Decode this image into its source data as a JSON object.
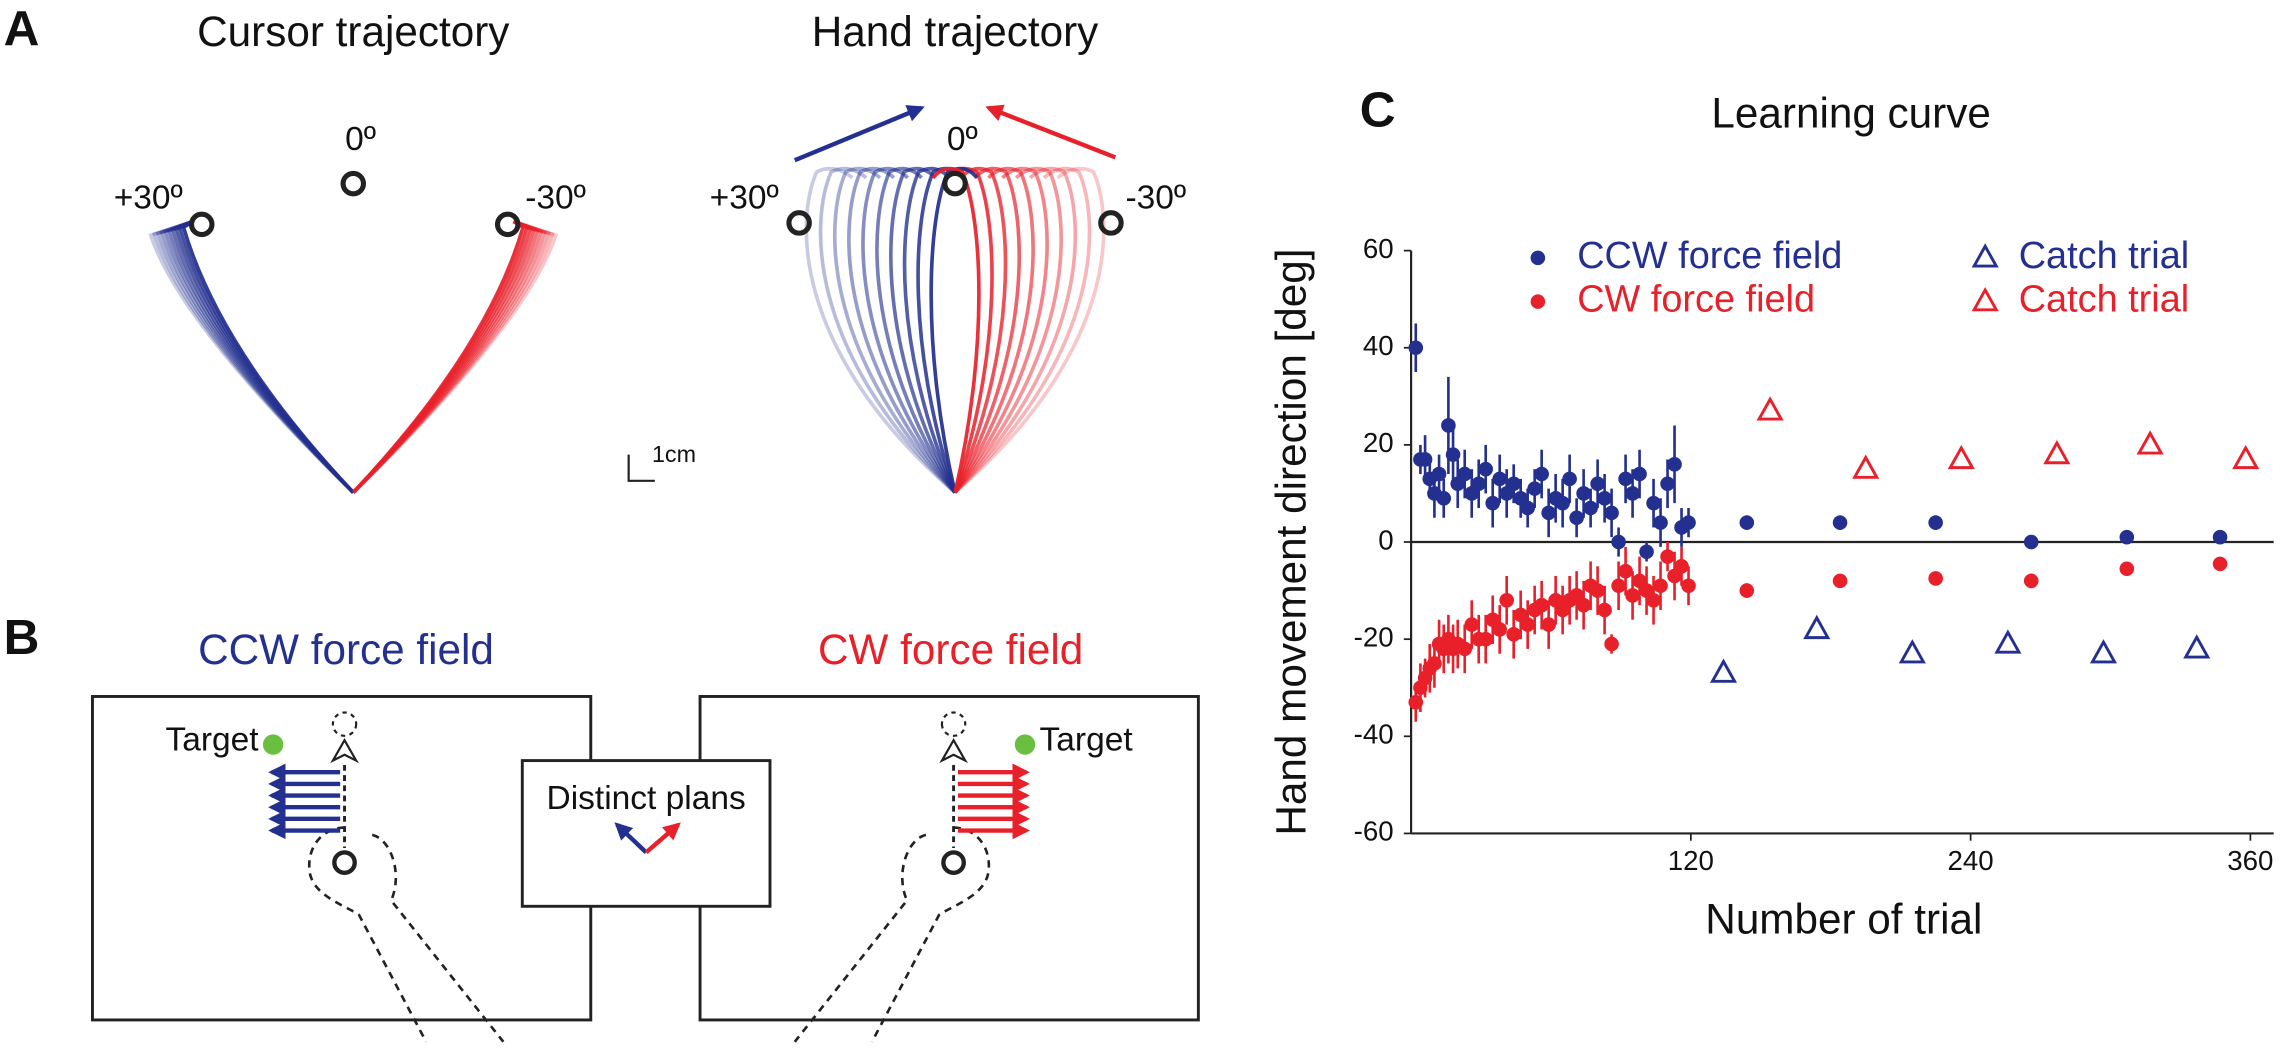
{
  "panel_a": {
    "label": "A",
    "cursor_title": "Cursor trajectory",
    "hand_title": "Hand trajectory",
    "cursor_targets": [
      "0º",
      "+30º",
      "-30º"
    ],
    "hand_targets": [
      "0º",
      "+30º",
      "-30º"
    ],
    "scale": "1cm"
  },
  "panel_b": {
    "label": "B",
    "ccw_title": "CCW force field",
    "cw_title": "CW force field",
    "ccw_target": "Target",
    "cw_target": "Target",
    "plans": "Distinct plans"
  },
  "chart_data": {
    "panel_label": "C",
    "type": "scatter",
    "title": "Learning curve",
    "xlabel": "Number of trial",
    "ylabel": "Hand movement direction [deg]",
    "xlim": [
      0,
      370
    ],
    "ylim": [
      -60,
      60
    ],
    "xticks": [
      120,
      240,
      360
    ],
    "yticks": [
      -60,
      -40,
      -20,
      0,
      20,
      40,
      60
    ],
    "series": [
      {
        "name": "CCW force field",
        "color": "#23308f",
        "marker": "circle",
        "x": [
          2,
          4,
          6,
          8,
          10,
          12,
          14,
          16,
          18,
          20,
          23,
          26,
          29,
          32,
          35,
          38,
          41,
          44,
          47,
          50,
          53,
          56,
          59,
          62,
          65,
          68,
          71,
          74,
          77,
          80,
          83,
          86,
          89,
          92,
          95,
          98,
          101,
          104,
          107,
          110,
          113,
          116,
          119,
          144,
          184,
          225,
          266,
          307,
          347
        ],
        "values": [
          40,
          17,
          17,
          13,
          10,
          14,
          9,
          24,
          18,
          12,
          14,
          10,
          12,
          15,
          8,
          13,
          10,
          12,
          9,
          7,
          11,
          14,
          6,
          9,
          8,
          13,
          5,
          10,
          7,
          12,
          9,
          6,
          0,
          13,
          10,
          14,
          -2,
          8,
          4,
          12,
          16,
          3,
          4,
          4,
          4,
          4,
          0,
          1,
          1
        ],
        "errors": [
          5,
          3,
          5,
          4,
          5,
          4,
          4,
          10,
          6,
          5,
          5,
          5,
          5,
          5,
          5,
          5,
          5,
          4,
          4,
          4,
          4,
          5,
          5,
          5,
          5,
          5,
          4,
          5,
          4,
          5,
          5,
          5,
          3,
          5,
          5,
          5,
          2,
          5,
          5,
          5,
          8,
          4,
          3,
          1.5,
          1.5,
          1.5,
          1,
          1,
          1
        ]
      },
      {
        "name": "CW force field",
        "color": "#e8202a",
        "marker": "circle",
        "x": [
          2,
          4,
          6,
          8,
          10,
          12,
          14,
          16,
          18,
          20,
          23,
          26,
          29,
          32,
          35,
          38,
          41,
          44,
          47,
          50,
          53,
          56,
          59,
          62,
          65,
          68,
          71,
          74,
          77,
          80,
          83,
          86,
          89,
          92,
          95,
          98,
          101,
          104,
          107,
          110,
          113,
          116,
          119,
          144,
          184,
          225,
          266,
          307,
          347
        ],
        "values": [
          -33,
          -30,
          -28,
          -26,
          -25,
          -21,
          -22,
          -20,
          -22,
          -21,
          -22,
          -17,
          -20,
          -20,
          -16,
          -18,
          -12,
          -19,
          -15,
          -17,
          -14,
          -13,
          -17,
          -12,
          -14,
          -12,
          -11,
          -13,
          -9,
          -10,
          -14,
          -21,
          -9,
          -6,
          -11,
          -8,
          -10,
          -12,
          -9,
          -3,
          -7,
          -5,
          -9,
          -10,
          -8,
          -7.5,
          -8,
          -5.5,
          -4.5
        ],
        "errors": [
          4,
          5,
          4,
          5,
          5,
          5,
          5,
          5,
          5,
          5,
          5,
          5,
          5,
          5,
          5,
          5,
          5,
          5,
          5,
          5,
          5,
          5,
          5,
          5,
          5,
          5,
          5,
          5,
          5,
          5,
          5,
          2,
          5,
          5,
          5,
          5,
          5,
          5,
          5,
          3,
          5,
          4,
          4,
          1.5,
          1,
          1,
          1.5,
          1,
          1
        ]
      },
      {
        "name": "Catch trial",
        "color": "#23308f",
        "marker": "triangle",
        "x": [
          134,
          174,
          215,
          256,
          297,
          337
        ],
        "values": [
          -27,
          -18,
          -23,
          -21,
          -23,
          -22
        ]
      },
      {
        "name": "Catch trial",
        "color": "#e8202a",
        "marker": "triangle",
        "x": [
          154,
          195,
          236,
          277,
          317,
          358
        ],
        "values": [
          27,
          15,
          17,
          18,
          20,
          17
        ]
      }
    ]
  }
}
